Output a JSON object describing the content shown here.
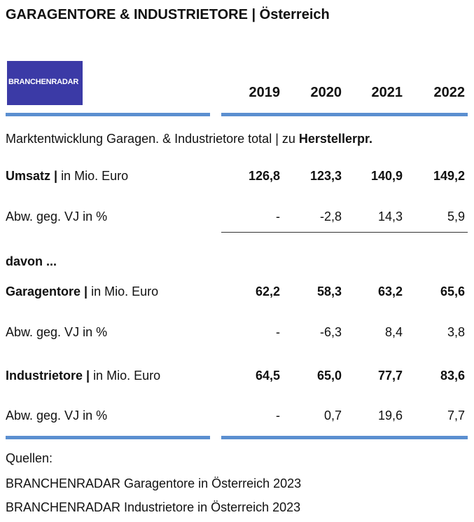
{
  "header": {
    "title": "GARAGENTORE & INDUSTRIETORE | Österreich",
    "logo": "BRANCHENRADAR",
    "years": [
      "2019",
      "2020",
      "2021",
      "2022"
    ]
  },
  "section": {
    "text": "Marktentwicklung Garagen. & Industrietore total | zu",
    "bold": "Herstellerpr."
  },
  "rows": [
    {
      "label_bold": "Umsatz |",
      "label": "in Mio. Euro",
      "values": [
        "126,8",
        "123,3",
        "140,9",
        "149,2"
      ]
    },
    {
      "label": "Abw. geg. VJ in %",
      "values": [
        "-",
        "-2,8",
        "14,3",
        "5,9"
      ]
    },
    {
      "label_bold": "davon ..."
    },
    {
      "label_bold": "Garagentore |",
      "label": "in Mio. Euro",
      "values": [
        "62,2",
        "58,3",
        "63,2",
        "65,6"
      ]
    },
    {
      "label": "Abw. geg. VJ in %",
      "values": [
        "-",
        "-6,3",
        "8,4",
        "3,8"
      ]
    },
    {
      "label_bold": "Industrietore |",
      "label": "in Mio. Euro",
      "values": [
        "64,5",
        "65,0",
        "77,7",
        "83,6"
      ]
    },
    {
      "label": "Abw. geg. VJ in %",
      "values": [
        "-",
        "0,7",
        "19,6",
        "7,7"
      ]
    }
  ],
  "sources": {
    "heading": "Quellen:",
    "items": [
      "BRANCHENRADAR Garagentore in Österreich 2023",
      "BRANCHENRADAR Industrietore in Österreich 2023"
    ]
  }
}
